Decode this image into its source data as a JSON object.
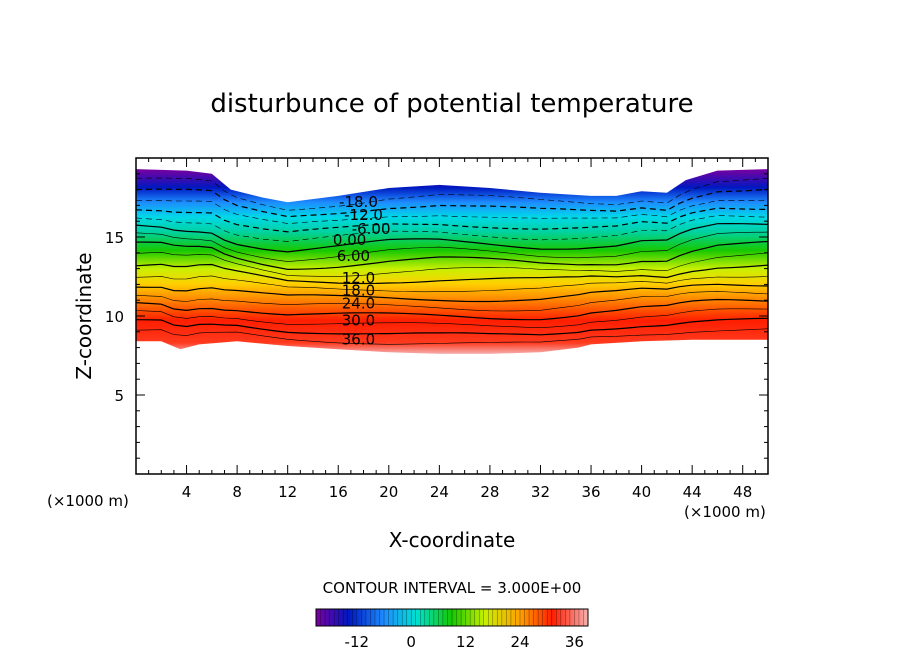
{
  "chart_data": {
    "type": "heatmap",
    "subtype": "filled-contour",
    "title": "disturbunce of potential temperature",
    "xlabel": "X-coordinate",
    "ylabel": "Z-coordinate",
    "x_unit_left": "(×1000 m)",
    "x_unit_right": "(×1000 m)",
    "xlim": [
      0,
      50
    ],
    "ylim": [
      0,
      20
    ],
    "x_ticks": [
      4,
      8,
      12,
      16,
      20,
      24,
      28,
      32,
      36,
      40,
      44,
      48
    ],
    "y_ticks": [
      5,
      10,
      15
    ],
    "contour_interval_text": "CONTOUR INTERVAL = 3.000E+00",
    "contour_interval": 3.0,
    "contour_labels": [
      {
        "text": "-18.0",
        "x": 17.6,
        "y": 17.2
      },
      {
        "text": "-12.0",
        "x": 18.0,
        "y": 16.4
      },
      {
        "text": "-6.00",
        "x": 18.6,
        "y": 15.5
      },
      {
        "text": "0.00",
        "x": 16.9,
        "y": 14.8
      },
      {
        "text": "6.00",
        "x": 17.2,
        "y": 13.8
      },
      {
        "text": "12.0",
        "x": 17.6,
        "y": 12.4
      },
      {
        "text": "18.0",
        "x": 17.6,
        "y": 11.6
      },
      {
        "text": "24.0",
        "x": 17.6,
        "y": 10.8
      },
      {
        "text": "30.0",
        "x": 17.6,
        "y": 9.7
      },
      {
        "text": "36.0",
        "x": 17.6,
        "y": 8.5
      }
    ],
    "field_extent": {
      "z_bottom_approx": [
        8.0,
        8.8
      ],
      "z_top_approx": [
        17.3,
        19.3
      ]
    },
    "colorbar": {
      "min": -21,
      "max": 39,
      "tick_labels": [
        "-12",
        "0",
        "12",
        "24",
        "36"
      ],
      "tick_values": [
        -12,
        0,
        12,
        24,
        36
      ],
      "colors": [
        "#7a00a0",
        "#0018c0",
        "#1e8cff",
        "#00e0d0",
        "#16c800",
        "#c8f000",
        "#ffa000",
        "#ff1e00",
        "#f6a0a0"
      ]
    },
    "grid": false,
    "legend": "colorbar-bottom"
  }
}
